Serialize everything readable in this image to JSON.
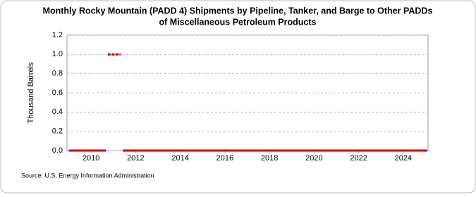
{
  "chart_data": {
    "type": "line",
    "title": [
      "Monthly Rocky Mountain (PADD 4) Shipments by Pipeline, Tanker, and Barge to Other PADDs",
      "of Miscellaneous Petroleum Products"
    ],
    "y_label": "Thousand Barrels",
    "source": "Source: U.S. Energy Information Administration",
    "series": [
      {
        "color": "#cc0000",
        "x": [
          2009.0,
          2010.67
        ],
        "values": [
          0,
          0
        ]
      },
      {
        "color": "#cc0000",
        "x": [
          2010.75,
          2010.83,
          2010.92,
          2011.0,
          2011.08,
          2011.17,
          2011.25,
          2011.33
        ],
        "values": [
          1,
          1,
          1,
          1,
          1,
          1,
          1,
          1
        ]
      },
      {
        "color": "#cc0000",
        "x": [
          2011.42,
          2025.08
        ],
        "values": [
          0,
          0
        ]
      }
    ],
    "xlim": [
      2008.92,
      2025.11
    ],
    "xticks": [
      2010,
      2012,
      2014,
      2016,
      2018,
      2020,
      2022,
      2024
    ],
    "ylim": [
      0,
      1.2
    ],
    "yticks": [
      {
        "value": 0,
        "label": "0.0"
      },
      {
        "value": 0.2,
        "label": "0.2"
      },
      {
        "value": 0.4,
        "label": "0.4"
      },
      {
        "value": 0.6,
        "label": "0.6"
      },
      {
        "value": 0.8,
        "label": "0.8"
      },
      {
        "value": 1,
        "label": "1.0"
      },
      {
        "value": 1.2,
        "label": "1.2"
      }
    ],
    "grid": true
  }
}
